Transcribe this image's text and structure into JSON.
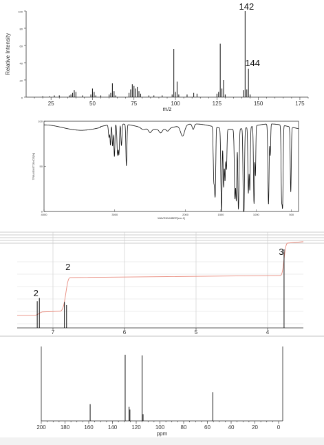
{
  "chart_data": [
    {
      "type": "bar",
      "ylabel": "Relative Intensity",
      "xlabel": "m/z",
      "xlim": [
        10,
        180
      ],
      "ylim": [
        0,
        100
      ],
      "xticks": [
        "25",
        "50",
        "75",
        "100",
        "125",
        "150",
        "175"
      ],
      "yticks": [
        "0",
        "20",
        "40",
        "60",
        "80",
        "100"
      ],
      "peak_labels": [
        "142",
        "144"
      ],
      "peaks": [
        {
          "x": 20,
          "y": 1
        },
        {
          "x": 24,
          "y": 1
        },
        {
          "x": 27,
          "y": 2
        },
        {
          "x": 30,
          "y": 2
        },
        {
          "x": 36,
          "y": 2
        },
        {
          "x": 37,
          "y": 3
        },
        {
          "x": 38,
          "y": 5
        },
        {
          "x": 39,
          "y": 8
        },
        {
          "x": 40,
          "y": 6
        },
        {
          "x": 44,
          "y": 2
        },
        {
          "x": 49,
          "y": 3
        },
        {
          "x": 50,
          "y": 10
        },
        {
          "x": 51,
          "y": 6
        },
        {
          "x": 52,
          "y": 2
        },
        {
          "x": 55,
          "y": 2
        },
        {
          "x": 60,
          "y": 3
        },
        {
          "x": 61,
          "y": 5
        },
        {
          "x": 62,
          "y": 16
        },
        {
          "x": 63,
          "y": 7
        },
        {
          "x": 64,
          "y": 2
        },
        {
          "x": 72,
          "y": 5
        },
        {
          "x": 73,
          "y": 9
        },
        {
          "x": 74,
          "y": 15
        },
        {
          "x": 75,
          "y": 13
        },
        {
          "x": 76,
          "y": 10
        },
        {
          "x": 77,
          "y": 12
        },
        {
          "x": 78,
          "y": 7
        },
        {
          "x": 79,
          "y": 4
        },
        {
          "x": 84,
          "y": 2
        },
        {
          "x": 87,
          "y": 2
        },
        {
          "x": 92,
          "y": 2
        },
        {
          "x": 98,
          "y": 3
        },
        {
          "x": 99,
          "y": 56
        },
        {
          "x": 100,
          "y": 6
        },
        {
          "x": 101,
          "y": 18
        },
        {
          "x": 102,
          "y": 3
        },
        {
          "x": 107,
          "y": 3
        },
        {
          "x": 111,
          "y": 5
        },
        {
          "x": 113,
          "y": 4
        },
        {
          "x": 125,
          "y": 4
        },
        {
          "x": 126,
          "y": 6
        },
        {
          "x": 127,
          "y": 62
        },
        {
          "x": 128,
          "y": 10
        },
        {
          "x": 129,
          "y": 20
        },
        {
          "x": 130,
          "y": 3
        },
        {
          "x": 141,
          "y": 8
        },
        {
          "x": 142,
          "y": 100
        },
        {
          "x": 143,
          "y": 9
        },
        {
          "x": 144,
          "y": 33
        },
        {
          "x": 145,
          "y": 3
        }
      ]
    },
    {
      "type": "line",
      "ylabel": "TRANSMITTANCE[%]",
      "xlabel": "WAVENUMBER[cm-1]",
      "xlim": [
        4000,
        400
      ],
      "ylim": [
        0,
        100
      ],
      "xticks": [
        "4000",
        "3000",
        "2000",
        "1500",
        "1000",
        "500"
      ],
      "yticks": [
        "100",
        "50",
        "0"
      ],
      "baseline": 94,
      "bands": [
        {
          "x": 3080,
          "y": 80,
          "w": 12
        },
        {
          "x": 3060,
          "y": 72,
          "w": 8
        },
        {
          "x": 3030,
          "y": 70,
          "w": 10
        },
        {
          "x": 3005,
          "y": 58,
          "w": 10
        },
        {
          "x": 2960,
          "y": 60,
          "w": 12
        },
        {
          "x": 2940,
          "y": 62,
          "w": 10
        },
        {
          "x": 2905,
          "y": 70,
          "w": 10
        },
        {
          "x": 2835,
          "y": 48,
          "w": 10
        },
        {
          "x": 2600,
          "y": 92,
          "w": 40
        },
        {
          "x": 2500,
          "y": 90,
          "w": 30
        },
        {
          "x": 2350,
          "y": 90,
          "w": 30
        },
        {
          "x": 2250,
          "y": 91,
          "w": 30
        },
        {
          "x": 2040,
          "y": 82,
          "w": 40
        },
        {
          "x": 1890,
          "y": 88,
          "w": 20
        },
        {
          "x": 1600,
          "y": 40,
          "w": 10
        },
        {
          "x": 1585,
          "y": 35,
          "w": 10
        },
        {
          "x": 1575,
          "y": 48,
          "w": 8
        },
        {
          "x": 1490,
          "y": 2,
          "w": 12
        },
        {
          "x": 1460,
          "y": 30,
          "w": 10
        },
        {
          "x": 1440,
          "y": 38,
          "w": 10
        },
        {
          "x": 1420,
          "y": 50,
          "w": 10
        },
        {
          "x": 1300,
          "y": 18,
          "w": 12
        },
        {
          "x": 1280,
          "y": 20,
          "w": 10
        },
        {
          "x": 1250,
          "y": 5,
          "w": 12
        },
        {
          "x": 1180,
          "y": 25,
          "w": 10
        },
        {
          "x": 1170,
          "y": 30,
          "w": 10
        },
        {
          "x": 1110,
          "y": 22,
          "w": 10
        },
        {
          "x": 1090,
          "y": 25,
          "w": 10
        },
        {
          "x": 1030,
          "y": 8,
          "w": 10
        },
        {
          "x": 1010,
          "y": 40,
          "w": 8
        },
        {
          "x": 825,
          "y": 5,
          "w": 12
        },
        {
          "x": 800,
          "y": 60,
          "w": 8
        },
        {
          "x": 640,
          "y": 20,
          "w": 10
        },
        {
          "x": 625,
          "y": 12,
          "w": 10
        },
        {
          "x": 510,
          "y": 22,
          "w": 10
        }
      ]
    },
    {
      "type": "line",
      "xlim": [
        7.5,
        3.5
      ],
      "xticks": [
        "7",
        "6",
        "5",
        "4"
      ],
      "integrals": [
        "2",
        "2",
        "3"
      ],
      "peaks": [
        {
          "x": 7.22,
          "h": 0.34
        },
        {
          "x": 7.19,
          "h": 0.38
        },
        {
          "x": 6.84,
          "h": 0.33
        },
        {
          "x": 6.81,
          "h": 0.29
        },
        {
          "x": 3.77,
          "h": 1.0
        }
      ],
      "integral_levels": [
        0.1,
        0.55,
        0.96
      ]
    },
    {
      "type": "bar",
      "xlabel": "ppm",
      "xlim": [
        200,
        0
      ],
      "xticks": [
        "200",
        "180",
        "160",
        "140",
        "120",
        "100",
        "80",
        "60",
        "40",
        "20",
        "0"
      ],
      "peaks": [
        {
          "x": 158.8,
          "y": 0.25
        },
        {
          "x": 129.3,
          "y": 0.99
        },
        {
          "x": 126.0,
          "y": 0.21
        },
        {
          "x": 125.3,
          "y": 0.17
        },
        {
          "x": 115.0,
          "y": 0.98
        },
        {
          "x": 114.2,
          "y": 0.1
        },
        {
          "x": 55.4,
          "y": 0.43
        }
      ]
    }
  ]
}
